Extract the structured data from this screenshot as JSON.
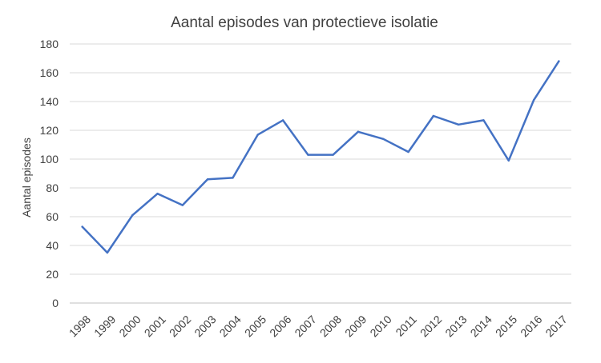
{
  "chart_data": {
    "type": "line",
    "title": "Aantal episodes  van protectieve isolatie",
    "xlabel": "",
    "ylabel": "Aantal episodes",
    "categories": [
      "1998",
      "1999",
      "2000",
      "2001",
      "2002",
      "2003",
      "2004",
      "2005",
      "2006",
      "2007",
      "2008",
      "2009",
      "2010",
      "2011",
      "2012",
      "2013",
      "2014",
      "2015",
      "2016",
      "2017"
    ],
    "series": [
      {
        "values": [
          53,
          35,
          61,
          76,
          68,
          86,
          87,
          117,
          127,
          103,
          103,
          119,
          114,
          105,
          130,
          124,
          127,
          99,
          141,
          168
        ]
      }
    ],
    "ylim": [
      0,
      180
    ],
    "yticks": [
      0,
      20,
      40,
      60,
      80,
      100,
      120,
      140,
      160,
      180
    ],
    "grid": true,
    "legend": "none",
    "colors": {
      "line": "#4472c4",
      "grid": "#d9d9d9",
      "text": "#404040"
    }
  }
}
